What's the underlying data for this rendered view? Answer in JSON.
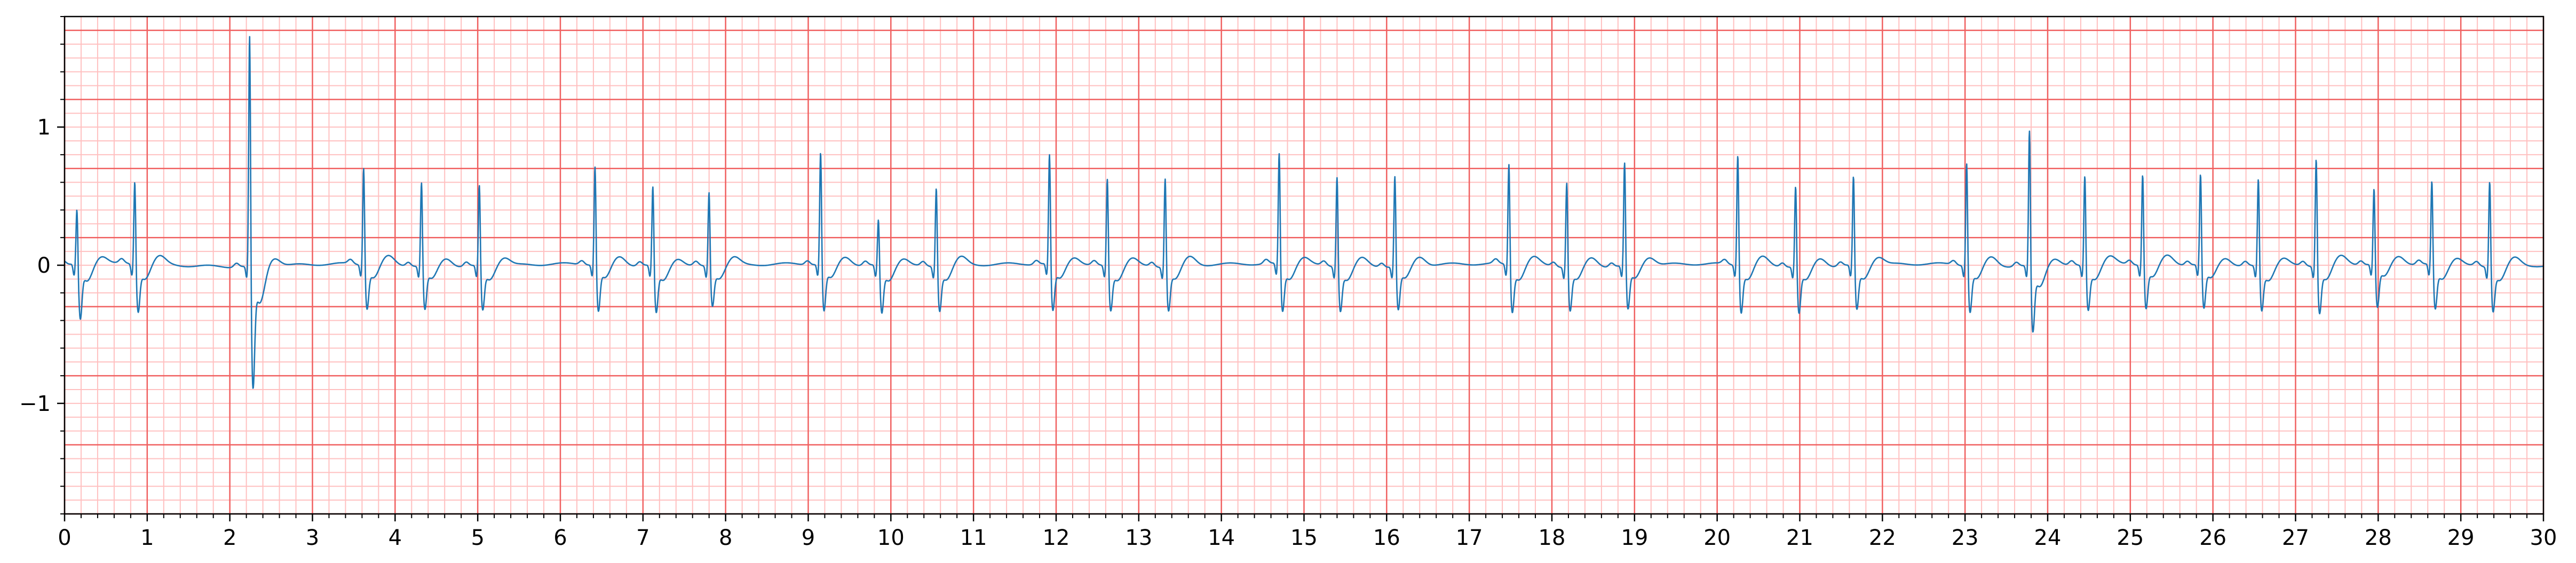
{
  "chart_data": {
    "type": "line",
    "title": "",
    "xlabel": "",
    "ylabel": "",
    "xlim": [
      0,
      30
    ],
    "ylim": [
      -1.8,
      1.8
    ],
    "x_ticks": [
      "0",
      "1",
      "2",
      "3",
      "4",
      "5",
      "6",
      "7",
      "8",
      "9",
      "10",
      "11",
      "12",
      "13",
      "14",
      "15",
      "16",
      "17",
      "18",
      "19",
      "20",
      "21",
      "22",
      "23",
      "24",
      "25",
      "26",
      "27",
      "28",
      "29",
      "30"
    ],
    "y_ticks": [
      "1",
      "0",
      "−1"
    ],
    "y_tick_values": [
      1,
      0,
      -1
    ],
    "grid": {
      "major_x": 1,
      "minor_x": 0.2,
      "major_y": 0.5,
      "minor_y": 0.1,
      "major_color": "#f06060",
      "minor_color": "#ffc0c0"
    },
    "series": [
      {
        "color": "#1f77b4",
        "beats": [
          {
            "t": 0.15,
            "r": 0.45,
            "s": -0.35
          },
          {
            "t": 0.85,
            "r": 0.65,
            "s": -0.3
          },
          {
            "t": 2.24,
            "r": 1.8,
            "s": -0.78
          },
          {
            "t": 3.62,
            "r": 0.75,
            "s": -0.28
          },
          {
            "t": 4.32,
            "r": 0.65,
            "s": -0.28
          },
          {
            "t": 5.02,
            "r": 0.63,
            "s": -0.28
          },
          {
            "t": 6.42,
            "r": 0.76,
            "s": -0.3
          },
          {
            "t": 7.12,
            "r": 0.62,
            "s": -0.3
          },
          {
            "t": 7.8,
            "r": 0.58,
            "s": -0.25
          },
          {
            "t": 9.15,
            "r": 0.86,
            "s": -0.3
          },
          {
            "t": 9.85,
            "r": 0.38,
            "s": -0.3
          },
          {
            "t": 10.55,
            "r": 0.62,
            "s": -0.28
          },
          {
            "t": 11.92,
            "r": 0.84,
            "s": -0.3
          },
          {
            "t": 12.62,
            "r": 0.68,
            "s": -0.28
          },
          {
            "t": 13.32,
            "r": 0.69,
            "s": -0.28
          },
          {
            "t": 14.7,
            "r": 0.85,
            "s": -0.3
          },
          {
            "t": 15.4,
            "r": 0.7,
            "s": -0.28
          },
          {
            "t": 16.1,
            "r": 0.7,
            "s": -0.28
          },
          {
            "t": 17.48,
            "r": 0.78,
            "s": -0.3
          },
          {
            "t": 18.18,
            "r": 0.66,
            "s": -0.28
          },
          {
            "t": 18.88,
            "r": 0.79,
            "s": -0.28
          },
          {
            "t": 20.25,
            "r": 0.85,
            "s": -0.3
          },
          {
            "t": 20.95,
            "r": 0.63,
            "s": -0.3
          },
          {
            "t": 21.65,
            "r": 0.69,
            "s": -0.28
          },
          {
            "t": 23.02,
            "r": 0.79,
            "s": -0.3
          },
          {
            "t": 23.78,
            "r": 1.05,
            "s": -0.42
          },
          {
            "t": 24.45,
            "r": 0.7,
            "s": -0.28
          },
          {
            "t": 25.15,
            "r": 0.7,
            "s": -0.28
          },
          {
            "t": 25.85,
            "r": 0.7,
            "s": -0.28
          },
          {
            "t": 26.55,
            "r": 0.68,
            "s": -0.28
          },
          {
            "t": 27.25,
            "r": 0.83,
            "s": -0.3
          },
          {
            "t": 27.95,
            "r": 0.59,
            "s": -0.28
          },
          {
            "t": 28.65,
            "r": 0.65,
            "s": -0.28
          },
          {
            "t": 29.35,
            "r": 0.67,
            "s": -0.28
          }
        ]
      }
    ]
  }
}
